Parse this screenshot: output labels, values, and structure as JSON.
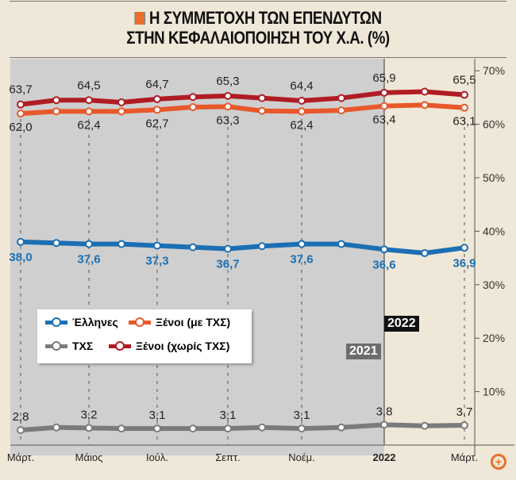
{
  "chart_data": {
    "type": "line",
    "title": "Η ΣΥΜΜΕΤΟΧΗ ΤΩΝ ΕΠΕΝΔΥΤΩΝ ΣΤΗΝ ΚΕΦΑΛΑΙΟΠΟΙΗΣΗ ΤΟΥ Χ.Α. (%)",
    "title_line1": "Η ΣΥΜΜΕΤΟΧΗ ΤΩΝ ΕΠΕΝΔΥΤΩΝ",
    "title_line2": "ΣΤΗΝ ΚΕΦΑΛΑΙΟΠΟΙΗΣΗ ΤΟΥ Χ.Α. (%)",
    "x_tick_labels": [
      "Μάρτ.",
      "",
      "Μάιος",
      "",
      "Ιούλ.",
      "",
      "Σεπτ.",
      "",
      "Νοέμ.",
      "",
      "2022",
      "",
      "Μάρτ."
    ],
    "y_ticks": [
      "10%",
      "20%",
      "30%",
      "40%",
      "50%",
      "60%",
      "70%"
    ],
    "ylim": [
      0,
      70
    ],
    "grid": false,
    "legend_position": "bottom-left",
    "year_labels": {
      "y2021": "2021",
      "y2022": "2022"
    },
    "series": [
      {
        "name": "Έλληνες",
        "color": "#1b6fb3",
        "values": [
          38.0,
          37.8,
          37.6,
          37.6,
          37.3,
          37.0,
          36.7,
          37.2,
          37.6,
          37.6,
          36.6,
          35.9,
          36.9
        ],
        "labels": [
          "38,0",
          "",
          "37,6",
          "",
          "37,3",
          "",
          "36,7",
          "",
          "37,6",
          "",
          "36,6",
          "",
          "36,9"
        ]
      },
      {
        "name": "Ξένοι (με ΤΧΣ)",
        "color": "#e8582a",
        "values": [
          62.0,
          62.4,
          62.4,
          62.4,
          62.7,
          63.2,
          63.3,
          62.5,
          62.4,
          62.6,
          63.4,
          63.6,
          63.1
        ],
        "labels": [
          "62,0",
          "",
          "62,4",
          "",
          "62,7",
          "",
          "63,3",
          "",
          "62,4",
          "",
          "63,4",
          "",
          "63,1"
        ]
      },
      {
        "name": "ΤΧΣ",
        "color": "#7b7b7b",
        "values": [
          2.8,
          3.3,
          3.2,
          3.1,
          3.1,
          3.1,
          3.1,
          3.3,
          3.1,
          3.3,
          3.8,
          3.6,
          3.7
        ],
        "labels": [
          "2,8",
          "",
          "3,2",
          "",
          "3,1",
          "",
          "3,1",
          "",
          "3,1",
          "",
          "3,8",
          "",
          "3,7"
        ]
      },
      {
        "name": "Ξένοι (χωρίς ΤΧΣ)",
        "color": "#b01c24",
        "values": [
          63.7,
          64.5,
          64.5,
          64.1,
          64.7,
          65.1,
          65.3,
          64.9,
          64.4,
          64.9,
          65.9,
          66.1,
          65.5
        ],
        "labels": [
          "63,7",
          "",
          "64,5",
          "",
          "64,7",
          "",
          "65,3",
          "",
          "64,4",
          "",
          "65,9",
          "",
          "65,5"
        ]
      }
    ]
  }
}
